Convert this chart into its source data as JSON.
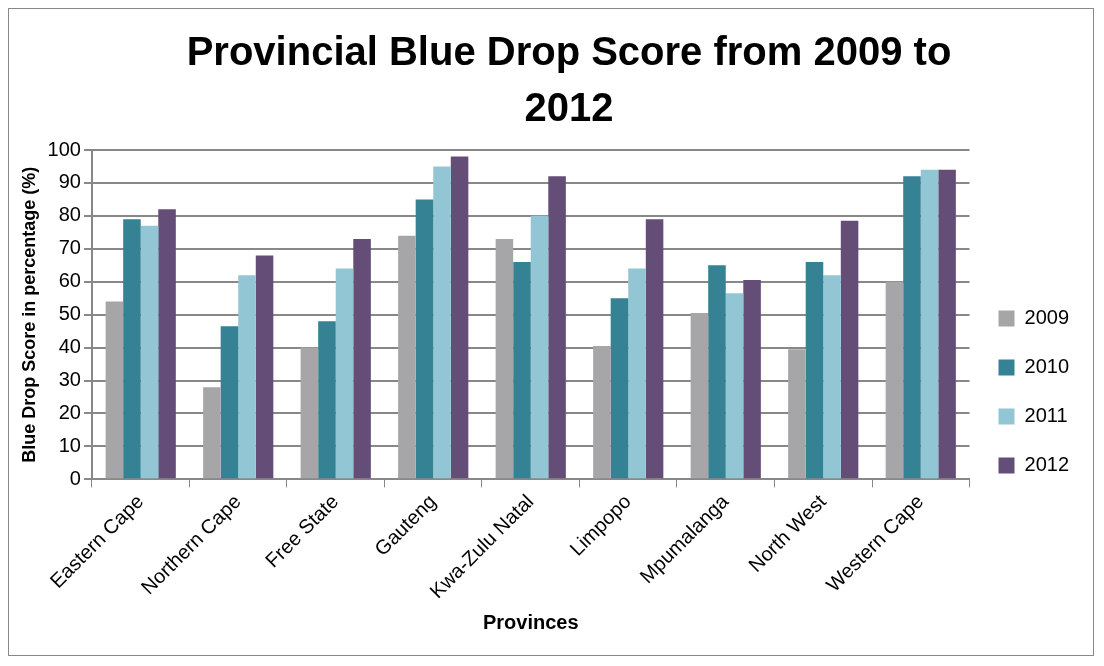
{
  "chart_data": {
    "type": "bar",
    "title": "Provincial Blue Drop Score from 2009 to 2012",
    "xlabel": "Provinces",
    "ylabel": "Blue Drop Score in percentage (%)",
    "categories": [
      "Eastern Cape",
      "Northern Cape",
      "Free State",
      "Gauteng",
      "Kwa-Zulu Natal",
      "Limpopo",
      "Mpumalanga",
      "North West",
      "Western Cape"
    ],
    "series": [
      {
        "name": "2009",
        "color": "#a6a6a9",
        "values": [
          54,
          28,
          40,
          74,
          73,
          40.5,
          50.5,
          39.5,
          60
        ]
      },
      {
        "name": "2010",
        "color": "#358295",
        "values": [
          79,
          46.5,
          48,
          85,
          66,
          55,
          65,
          66,
          92
        ]
      },
      {
        "name": "2011",
        "color": "#93c6d5",
        "values": [
          77,
          62,
          64,
          95,
          80,
          64,
          56.5,
          62,
          94
        ]
      },
      {
        "name": "2012",
        "color": "#644e78",
        "values": [
          82,
          68,
          73,
          98,
          92,
          79,
          60.5,
          78.5,
          94
        ]
      }
    ],
    "ylim": [
      0,
      100
    ],
    "yticks": [
      0,
      10,
      20,
      30,
      40,
      50,
      60,
      70,
      80,
      90,
      100
    ],
    "grid": "y",
    "legend": "right"
  }
}
